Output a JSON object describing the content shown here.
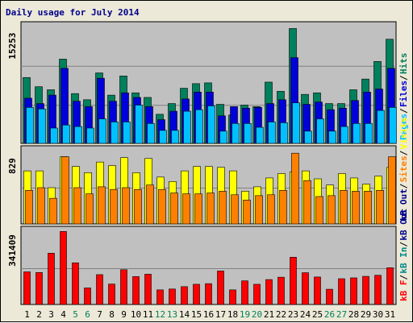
{
  "title": "Daily usage for July 2014",
  "colors": {
    "hits": "#00805c",
    "files": "#0000d8",
    "pages": "#00c0ff",
    "visits": "#ffff00",
    "sites": "#ff8000",
    "kbin": "#008b8b",
    "kbout": "#00008b",
    "kbf": "#ff0000",
    "weekend_label": "#00805c",
    "weekday_label": "#000000",
    "panel_bg": "#c0c0c0",
    "frame_bg": "#ece9d8"
  },
  "chart_data": [
    {
      "type": "bar",
      "panel": "top",
      "ymax_label": "15253",
      "ylim": [
        0,
        15253
      ],
      "grid": true,
      "side_legend": [
        "Pages",
        "Files",
        "Hits"
      ],
      "series": [
        {
          "name": "Hits",
          "values": [
            8600,
            7400,
            7000,
            11000,
            6500,
            5700,
            9200,
            6300,
            8800,
            6600,
            6000,
            3800,
            5200,
            7200,
            7800,
            7900,
            5100,
            3700,
            5000,
            4800,
            8000,
            6800,
            15000,
            6400,
            6600,
            5200,
            5200,
            7000,
            8400,
            10700,
            13600
          ]
        },
        {
          "name": "Files",
          "values": [
            5900,
            5200,
            6300,
            9800,
            5500,
            4800,
            8500,
            5500,
            6600,
            6000,
            4800,
            3100,
            4200,
            5800,
            6700,
            6700,
            3600,
            4800,
            4600,
            4700,
            5200,
            5700,
            11200,
            5100,
            5400,
            4400,
            4600,
            5600,
            6700,
            7100,
            9800
          ]
        },
        {
          "name": "Pages",
          "values": [
            4700,
            4500,
            2000,
            2400,
            2200,
            2000,
            3200,
            2800,
            2800,
            5000,
            2600,
            1700,
            1700,
            4200,
            4400,
            4900,
            1600,
            2600,
            2600,
            2100,
            2800,
            2700,
            5300,
            1600,
            3200,
            1600,
            2200,
            2600,
            2600,
            4300,
            4700
          ]
        }
      ]
    },
    {
      "type": "bar",
      "panel": "middle",
      "ymax_label": "829",
      "ylim": [
        0,
        829
      ],
      "grid": true,
      "side_legend": [
        "Visits",
        "Sites",
        "KB Out"
      ],
      "series": [
        {
          "name": "Visits",
          "values": [
            600,
            600,
            410,
            760,
            650,
            580,
            700,
            660,
            750,
            580,
            740,
            530,
            480,
            600,
            650,
            650,
            640,
            600,
            370,
            420,
            520,
            570,
            590,
            600,
            510,
            440,
            570,
            520,
            450,
            540,
            640
          ]
        },
        {
          "name": "Sites",
          "values": [
            380,
            410,
            290,
            760,
            410,
            340,
            420,
            390,
            410,
            390,
            440,
            390,
            350,
            340,
            340,
            350,
            370,
            330,
            270,
            320,
            330,
            380,
            800,
            490,
            310,
            320,
            380,
            370,
            370,
            380,
            760
          ]
        }
      ]
    },
    {
      "type": "bar",
      "panel": "bottom",
      "ymax_label": "341409",
      "ylim": [
        0,
        341409
      ],
      "grid": true,
      "side_legend": [
        "KB F",
        "KB In",
        "KB Out"
      ],
      "series": [
        {
          "name": "KB F",
          "values": [
            152000,
            149000,
            239000,
            340000,
            194000,
            77000,
            139000,
            95000,
            162000,
            130000,
            141000,
            68000,
            72000,
            83000,
            94000,
            97000,
            156000,
            68000,
            110000,
            94000,
            116000,
            127000,
            220000,
            148000,
            128000,
            71000,
            120000,
            124000,
            131000,
            136000,
            171000
          ]
        }
      ]
    }
  ],
  "x_labels": [
    "1",
    "2",
    "3",
    "4",
    "5",
    "6",
    "7",
    "8",
    "9",
    "10",
    "11",
    "12",
    "13",
    "14",
    "15",
    "16",
    "17",
    "18",
    "19",
    "20",
    "21",
    "22",
    "23",
    "24",
    "25",
    "26",
    "27",
    "28",
    "29",
    "30",
    "31"
  ],
  "weekend_days": [
    5,
    6,
    12,
    13,
    19,
    20,
    26,
    27
  ]
}
